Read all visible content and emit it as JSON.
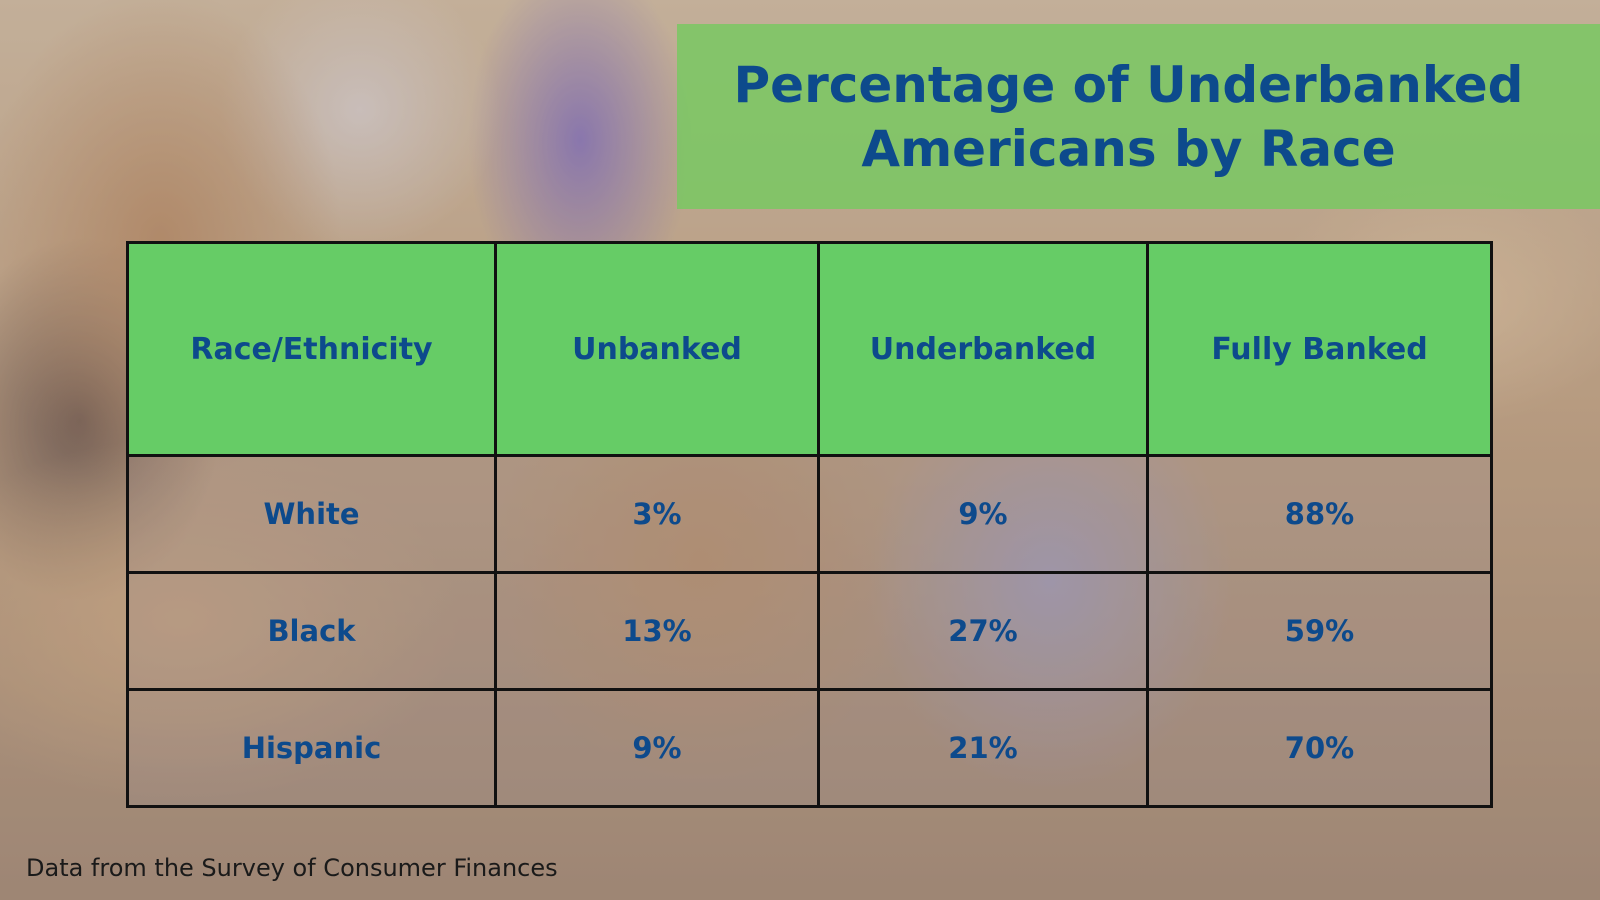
{
  "title": {
    "line1": "Percentage of Underbanked",
    "line2": "Americans by Race"
  },
  "table": {
    "headers": [
      "Race/Ethnicity",
      "Unbanked",
      "Underbanked",
      "Fully Banked"
    ],
    "rows": [
      [
        "White",
        "3%",
        "9%",
        "88%"
      ],
      [
        "Black",
        "13%",
        "27%",
        "59%"
      ],
      [
        "Hispanic",
        "9%",
        "21%",
        "70%"
      ]
    ]
  },
  "source": "Data from the Survey of Consumer Finances",
  "colors": {
    "title_background": "#76c960",
    "header_background": "#66cc66",
    "text": "#0d4a8c",
    "border": "#111111"
  }
}
